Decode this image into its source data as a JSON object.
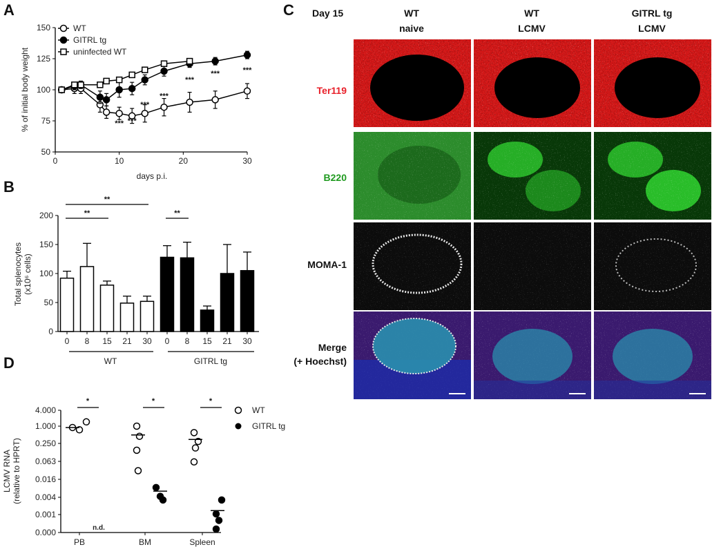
{
  "panel_letters": {
    "a": "A",
    "b": "B",
    "c": "C",
    "d": "D"
  },
  "chart_data": [
    {
      "panel": "A",
      "type": "line",
      "xlabel": "days p.i.",
      "ylabel": "% of initial body weight",
      "xlim": [
        0,
        30
      ],
      "ylim": [
        50,
        150
      ],
      "xticks": [
        0,
        10,
        20,
        30
      ],
      "yticks": [
        50,
        75,
        100,
        125,
        150
      ],
      "legend_position": "top-left",
      "series": [
        {
          "name": "WT",
          "marker": "open-circle",
          "color": "#000000",
          "x": [
            1,
            3,
            4,
            7,
            8,
            10,
            12,
            14,
            17,
            21,
            25,
            30
          ],
          "y": [
            100,
            101,
            101,
            88,
            82,
            81,
            79,
            81,
            86,
            90,
            92,
            99
          ],
          "err": [
            0,
            4,
            4,
            6,
            5,
            5,
            6,
            7,
            7,
            8,
            7,
            6
          ]
        },
        {
          "name": "GITRL tg",
          "marker": "filled-circle",
          "color": "#000000",
          "x": [
            1,
            3,
            4,
            7,
            8,
            10,
            12,
            14,
            17,
            21,
            25,
            30
          ],
          "y": [
            100,
            103,
            104,
            94,
            92,
            100,
            101,
            108,
            115,
            121,
            123,
            128
          ],
          "err": [
            0,
            3,
            3,
            5,
            5,
            6,
            5,
            4,
            4,
            3,
            3,
            3
          ]
        },
        {
          "name": "uninfected WT",
          "marker": "open-square",
          "color": "#000000",
          "x": [
            1,
            3,
            4,
            7,
            8,
            10,
            12,
            14,
            17,
            21,
            25,
            30
          ],
          "y": [
            100,
            104,
            104,
            104,
            107,
            108,
            112,
            116,
            121,
            123,
            null,
            null
          ],
          "err": [
            0,
            2,
            2,
            2,
            2,
            2,
            2,
            2,
            2,
            2,
            0,
            0
          ]
        }
      ],
      "annotations": [
        {
          "x": 10,
          "y": 71,
          "text": "***"
        },
        {
          "x": 12,
          "y": 73,
          "text": "***"
        },
        {
          "x": 14,
          "y": 86,
          "text": "***"
        },
        {
          "x": 17,
          "y": 93,
          "text": "***"
        },
        {
          "x": 21,
          "y": 106,
          "text": "***"
        },
        {
          "x": 25,
          "y": 111,
          "text": "***"
        },
        {
          "x": 30,
          "y": 114,
          "text": "***"
        }
      ]
    },
    {
      "panel": "B",
      "type": "bar",
      "ylabel_line1": "Total splenocytes",
      "ylabel_line2": "(x10⁶ cells)",
      "ylim": [
        0,
        200
      ],
      "yticks": [
        0,
        50,
        100,
        150,
        200
      ],
      "categories": [
        "0",
        "8",
        "15",
        "21",
        "30",
        "0",
        "8",
        "15",
        "21",
        "30"
      ],
      "groups": [
        {
          "name": "WT",
          "fill": "#ffffff",
          "values": [
            92,
            112,
            80,
            49,
            52
          ],
          "err": [
            12,
            40,
            7,
            12,
            9
          ]
        },
        {
          "name": "GITRL tg",
          "fill": "#000000",
          "values": [
            128,
            127,
            37,
            100,
            105
          ],
          "err": [
            20,
            27,
            7,
            50,
            32
          ]
        }
      ],
      "significance": [
        {
          "from": 0,
          "to": 4,
          "text": "**"
        },
        {
          "from": 0,
          "to": 2,
          "text": "**"
        },
        {
          "from": 5,
          "to": 6,
          "text": "**"
        }
      ]
    },
    {
      "panel": "D",
      "type": "scatter",
      "ylabel_line1": "LCMV RNA",
      "ylabel_line2": "(relative to HPRT)",
      "scale": "log",
      "yticks": [
        "0.000",
        "0.001",
        "0.004",
        "0.016",
        "0.063",
        "0.250",
        "1.000",
        "4.000"
      ],
      "categories": [
        "PB",
        "BM",
        "Spleen"
      ],
      "legend_position": "right",
      "series": [
        {
          "name": "WT",
          "marker": "open-circle",
          "values": [
            [
              0.9,
              0.75,
              1.4
            ],
            [
              1.0,
              0.45,
              0.15,
              0.03
            ],
            [
              0.6,
              0.3,
              0.18,
              0.06
            ]
          ],
          "means": [
            0.9,
            0.5,
            0.35
          ]
        },
        {
          "name": "GITRL tg",
          "marker": "filled-circle",
          "values": [
            [],
            [
              0.008,
              0.004,
              0.003
            ],
            [
              0.003,
              0.001,
              0.0006,
              0.0003
            ]
          ],
          "means": [
            null,
            0.006,
            0.0013
          ]
        }
      ],
      "annotations": [
        {
          "category": 0,
          "text": "n.d."
        }
      ],
      "significance": [
        {
          "category": 0,
          "text": "*"
        },
        {
          "category": 1,
          "text": "*"
        },
        {
          "category": 2,
          "text": "*"
        }
      ]
    }
  ],
  "panel_c": {
    "day_label": "Day 15",
    "columns": [
      {
        "line1": "WT",
        "line2": "naive"
      },
      {
        "line1": "WT",
        "line2": "LCMV"
      },
      {
        "line1": "GITRL tg",
        "line2": "LCMV"
      }
    ],
    "rows": [
      {
        "label": "Ter119",
        "color": "#e8202a"
      },
      {
        "label": "B220",
        "color": "#1f9a1f"
      },
      {
        "label": "MOMA-1",
        "color": "#111111"
      },
      {
        "label_line1": "Merge",
        "label_line2": "(+ Hoechst)",
        "color": "#111111"
      }
    ]
  }
}
